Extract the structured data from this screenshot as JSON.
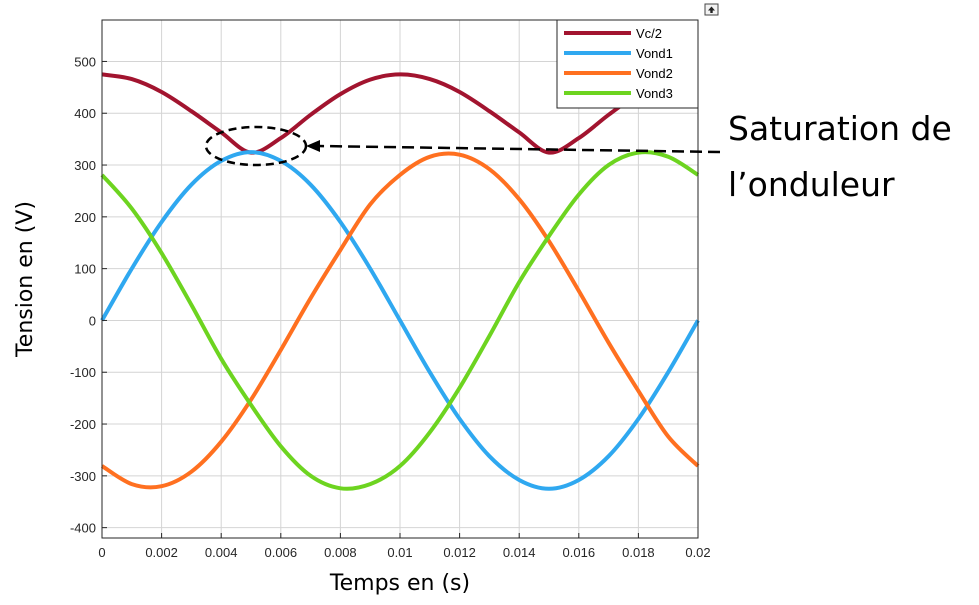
{
  "chart_data": {
    "type": "line",
    "xlabel": "Temps en (s)",
    "ylabel": "Tension en (V)",
    "xlim": [
      0,
      0.02
    ],
    "ylim": [
      -420,
      580
    ],
    "x_ticks": [
      0,
      0.002,
      0.004,
      0.006,
      0.008,
      0.01,
      0.012,
      0.014,
      0.016,
      0.018,
      0.02
    ],
    "x_tick_labels": [
      "0",
      "0.002",
      "0.004",
      "0.006",
      "0.008",
      "0.01",
      "0.012",
      "0.014",
      "0.016",
      "0.018",
      "0.02"
    ],
    "y_ticks": [
      -400,
      -300,
      -200,
      -100,
      0,
      100,
      200,
      300,
      400,
      500
    ],
    "y_tick_labels": [
      "-400",
      "-300",
      "-200",
      "-100",
      "0",
      "100",
      "200",
      "300",
      "400",
      "500"
    ],
    "grid": true,
    "legend_position": "top-right",
    "series": [
      {
        "name": "Vc/2",
        "color": "#A2142F",
        "x": [
          0,
          0.001,
          0.002,
          0.003,
          0.004,
          0.005,
          0.006,
          0.007,
          0.008,
          0.009,
          0.01,
          0.011,
          0.012,
          0.013,
          0.014,
          0.015,
          0.016,
          0.017,
          0.018,
          0.019,
          0.02
        ],
        "values": [
          475,
          466,
          441,
          404,
          363,
          324,
          352,
          397,
          437,
          465,
          475,
          466,
          441,
          404,
          363,
          324,
          352,
          397,
          437,
          465,
          475
        ]
      },
      {
        "name": "Vond1",
        "color": "#2FA8F0",
        "x": [
          0,
          0.001,
          0.002,
          0.003,
          0.004,
          0.005,
          0.006,
          0.007,
          0.008,
          0.009,
          0.01,
          0.011,
          0.012,
          0.013,
          0.014,
          0.015,
          0.016,
          0.017,
          0.018,
          0.019,
          0.02
        ],
        "values": [
          0,
          100,
          190,
          262,
          308,
          325,
          308,
          262,
          190,
          100,
          0,
          -100,
          -190,
          -262,
          -308,
          -325,
          -308,
          -262,
          -190,
          -100,
          0
        ]
      },
      {
        "name": "Vond2",
        "color": "#FF7020",
        "x": [
          0,
          0.001,
          0.002,
          0.003,
          0.004,
          0.005,
          0.006,
          0.007,
          0.008,
          0.009,
          0.01,
          0.011,
          0.012,
          0.013,
          0.014,
          0.015,
          0.016,
          0.017,
          0.018,
          0.019,
          0.02
        ],
        "values": [
          -281,
          -316,
          -320,
          -292,
          -234,
          -153,
          -57,
          43,
          136,
          224,
          281,
          316,
          320,
          292,
          234,
          153,
          57,
          -43,
          -136,
          -224,
          -281
        ]
      },
      {
        "name": "Vond3",
        "color": "#6DD420",
        "x": [
          0,
          0.001,
          0.002,
          0.003,
          0.004,
          0.005,
          0.006,
          0.007,
          0.008,
          0.009,
          0.01,
          0.011,
          0.012,
          0.013,
          0.014,
          0.015,
          0.016,
          0.017,
          0.018,
          0.019,
          0.02
        ],
        "values": [
          281,
          216,
          130,
          30,
          -74,
          -163,
          -243,
          -300,
          -324,
          -316,
          -281,
          -216,
          -130,
          -30,
          74,
          163,
          243,
          300,
          324,
          316,
          281
        ]
      }
    ],
    "annotations": [
      {
        "text_lines": [
          "Saturation de",
          "l’onduleur"
        ]
      }
    ]
  }
}
